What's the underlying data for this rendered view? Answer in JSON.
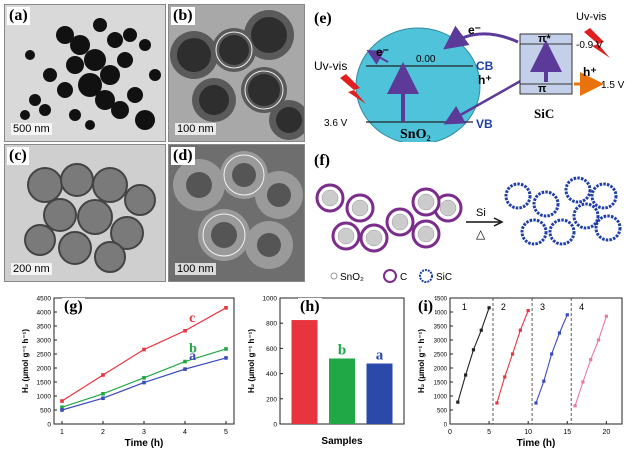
{
  "panels": {
    "a": {
      "label": "(a)",
      "scale": "500 nm"
    },
    "b": {
      "label": "(b)",
      "scale": "100 nm"
    },
    "c": {
      "label": "(c)",
      "scale": "200 nm"
    },
    "d": {
      "label": "(d)",
      "scale": "100 nm"
    },
    "e": {
      "label": "(e)"
    },
    "f": {
      "label": "(f)"
    },
    "g": {
      "label": "(g)"
    },
    "h": {
      "label": "(h)"
    },
    "i": {
      "label": "(i)"
    }
  },
  "band_diagram": {
    "uv_left": "Uv-vis",
    "uv_right": "Uv-vis",
    "electron": "e⁻",
    "hole": "h⁺",
    "cb": "CB",
    "vb": "VB",
    "cb_level": "0.00",
    "vb_level": "3.6 V",
    "sno2": "SnO₂",
    "sic": "SiC",
    "pi_star": "π*",
    "pi": "π",
    "sic_cb_level": "-0.9 V",
    "sic_vb_level": "1.5 V",
    "colors": {
      "sno2_fill": "#4fc3d9",
      "sic_fill": "#c4d0ea",
      "arrow": "#5b3a99",
      "hole_arrow": "#e8720c",
      "lightning": "#e02020"
    }
  },
  "schematic": {
    "reagent": "Si",
    "condition": "△",
    "legend": [
      {
        "symbol": "○",
        "label": "SnO₂"
      },
      {
        "symbol": "○",
        "label": "C"
      },
      {
        "symbol": "○",
        "label": "SiC"
      }
    ],
    "colors": {
      "carbon": "#7b2d8b",
      "sic": "#1f3fa8"
    }
  },
  "chart_data": [
    {
      "type": "line",
      "panel": "g",
      "x": [
        1,
        2,
        3,
        4,
        5
      ],
      "series": [
        {
          "name": "c",
          "color": "#e8343f",
          "values": [
            820,
            1750,
            2660,
            3330,
            4150
          ]
        },
        {
          "name": "b",
          "color": "#21a846",
          "values": [
            600,
            1080,
            1650,
            2230,
            2680
          ]
        },
        {
          "name": "a",
          "color": "#3b4cc0",
          "values": [
            500,
            920,
            1480,
            1960,
            2360
          ]
        }
      ],
      "xlabel": "Time (h)",
      "ylabel": "H₂ (μmol g⁻¹ h⁻¹)",
      "xlim": [
        1,
        5
      ],
      "ylim": [
        0,
        4500
      ],
      "yticks": [
        0,
        500,
        1000,
        1500,
        2000,
        2500,
        3000,
        3500,
        4000,
        4500
      ],
      "xticks": [
        1,
        2,
        3,
        4,
        5
      ]
    },
    {
      "type": "bar",
      "panel": "h",
      "categories": [
        "c",
        "b",
        "a"
      ],
      "values": [
        825,
        520,
        480
      ],
      "colors": [
        "#e8343f",
        "#21a846",
        "#2a49a8"
      ],
      "xlabel": "Samples",
      "ylabel": "H₂ (μmol g⁻¹ h⁻¹)",
      "ylim": [
        0,
        1000
      ],
      "yticks": [
        0,
        200,
        400,
        600,
        800,
        1000
      ]
    },
    {
      "type": "line",
      "panel": "i",
      "series": [
        {
          "name": "1",
          "color": "#222222",
          "x": [
            1,
            2,
            3,
            4,
            5
          ],
          "values": [
            780,
            1750,
            2650,
            3350,
            4150
          ]
        },
        {
          "name": "2",
          "color": "#e8343f",
          "x": [
            6,
            7,
            8,
            9,
            10
          ],
          "values": [
            750,
            1680,
            2500,
            3350,
            4050
          ]
        },
        {
          "name": "3",
          "color": "#3b4cc0",
          "x": [
            11,
            12,
            13,
            14,
            15
          ],
          "values": [
            750,
            1530,
            2500,
            3250,
            3900
          ]
        },
        {
          "name": "4",
          "color": "#e87b9a",
          "x": [
            16,
            17,
            18,
            19,
            20
          ],
          "values": [
            650,
            1500,
            2300,
            3000,
            3850
          ]
        }
      ],
      "cycle_dividers": [
        5.5,
        10.5,
        15.5
      ],
      "xlabel": "Time (h)",
      "ylabel": "H₂ (μmol g⁻¹ h⁻¹)",
      "xlim": [
        0,
        22
      ],
      "ylim": [
        0,
        4500
      ],
      "yticks": [
        0,
        500,
        1000,
        1500,
        2000,
        2500,
        3000,
        3500,
        4000,
        4500
      ],
      "xticks": [
        0,
        5,
        10,
        15,
        20
      ]
    }
  ]
}
